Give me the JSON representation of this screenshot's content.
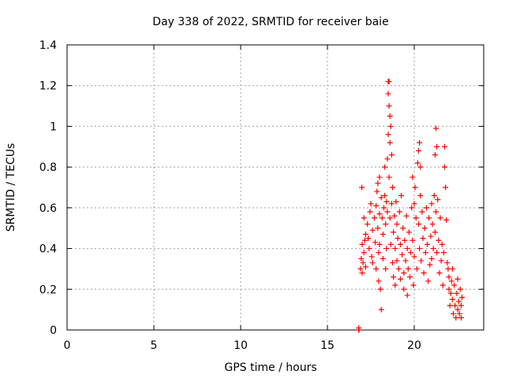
{
  "chart_data": {
    "type": "scatter",
    "title": "Day 338 of 2022, SRMTID for receiver baie",
    "xlabel": "GPS time / hours",
    "ylabel": "SRMTID / TECUs",
    "xlim": [
      0,
      24
    ],
    "ylim": [
      0,
      1.4
    ],
    "xticks": [
      0,
      5,
      10,
      15,
      20
    ],
    "xtick_labels": [
      "0",
      "5",
      "10",
      "15",
      "20"
    ],
    "yticks": [
      0,
      0.2,
      0.4,
      0.6,
      0.8,
      1.0,
      1.2,
      1.4
    ],
    "ytick_labels": [
      "0",
      "0.2",
      "0.4",
      "0.6",
      "0.8",
      "1",
      "1.2",
      "1.4"
    ],
    "grid": true,
    "marker": "plus",
    "color": "#ff0000",
    "series": [
      {
        "name": "SRMTID",
        "points": [
          [
            16.8,
            0.0
          ],
          [
            16.8,
            0.01
          ],
          [
            16.82,
            0.0
          ],
          [
            16.9,
            0.3
          ],
          [
            16.95,
            0.35
          ],
          [
            17.0,
            0.42
          ],
          [
            17.0,
            0.28
          ],
          [
            17.05,
            0.33
          ],
          [
            17.1,
            0.38
          ],
          [
            17.15,
            0.44
          ],
          [
            17.2,
            0.31
          ],
          [
            16.98,
            0.7
          ],
          [
            17.1,
            0.55
          ],
          [
            17.2,
            0.47
          ],
          [
            17.3,
            0.52
          ],
          [
            17.35,
            0.45
          ],
          [
            17.4,
            0.4
          ],
          [
            17.45,
            0.58
          ],
          [
            17.5,
            0.62
          ],
          [
            17.55,
            0.36
          ],
          [
            17.6,
            0.49
          ],
          [
            17.6,
            0.33
          ],
          [
            17.7,
            0.55
          ],
          [
            17.75,
            0.43
          ],
          [
            17.8,
            0.61
          ],
          [
            17.8,
            0.3
          ],
          [
            17.85,
            0.68
          ],
          [
            17.9,
            0.72
          ],
          [
            17.9,
            0.5
          ],
          [
            17.95,
            0.38
          ],
          [
            17.95,
            0.24
          ],
          [
            18.0,
            0.75
          ],
          [
            18.0,
            0.57
          ],
          [
            18.0,
            0.42
          ],
          [
            18.05,
            0.2
          ],
          [
            18.1,
            0.65
          ],
          [
            18.1,
            0.1
          ],
          [
            18.15,
            0.55
          ],
          [
            18.2,
            0.47
          ],
          [
            18.2,
            0.35
          ],
          [
            18.25,
            0.6
          ],
          [
            18.3,
            0.8
          ],
          [
            18.3,
            0.66
          ],
          [
            18.35,
            0.52
          ],
          [
            18.35,
            0.3
          ],
          [
            18.4,
            0.63
          ],
          [
            18.4,
            0.4
          ],
          [
            18.45,
            0.84
          ],
          [
            18.45,
            0.58
          ],
          [
            18.5,
            1.22
          ],
          [
            18.5,
            1.16
          ],
          [
            18.5,
            0.96
          ],
          [
            18.55,
            1.22
          ],
          [
            18.55,
            1.1
          ],
          [
            18.55,
            0.75
          ],
          [
            18.6,
            1.05
          ],
          [
            18.6,
            0.92
          ],
          [
            18.6,
            0.55
          ],
          [
            18.65,
            1.0
          ],
          [
            18.65,
            0.42
          ],
          [
            18.7,
            0.86
          ],
          [
            18.7,
            0.62
          ],
          [
            18.75,
            0.7
          ],
          [
            18.75,
            0.33
          ],
          [
            18.8,
            0.48
          ],
          [
            18.8,
            0.26
          ],
          [
            18.85,
            0.56
          ],
          [
            18.9,
            0.4
          ],
          [
            18.9,
            0.22
          ],
          [
            18.95,
            0.63
          ],
          [
            19.0,
            0.52
          ],
          [
            19.0,
            0.34
          ],
          [
            19.05,
            0.45
          ],
          [
            19.1,
            0.3
          ],
          [
            19.15,
            0.58
          ],
          [
            19.2,
            0.42
          ],
          [
            19.2,
            0.25
          ],
          [
            19.25,
            0.66
          ],
          [
            19.3,
            0.37
          ],
          [
            19.35,
            0.5
          ],
          [
            19.4,
            0.28
          ],
          [
            19.4,
            0.2
          ],
          [
            19.45,
            0.44
          ],
          [
            19.5,
            0.34
          ],
          [
            19.55,
            0.56
          ],
          [
            19.6,
            0.17
          ],
          [
            19.6,
            0.4
          ],
          [
            19.65,
            0.3
          ],
          [
            19.7,
            0.48
          ],
          [
            19.75,
            0.26
          ],
          [
            19.8,
            0.38
          ],
          [
            19.85,
            0.6
          ],
          [
            19.9,
            0.75
          ],
          [
            19.9,
            0.44
          ],
          [
            19.95,
            0.22
          ],
          [
            20.0,
            0.62
          ],
          [
            20.0,
            0.36
          ],
          [
            20.05,
            0.7
          ],
          [
            20.1,
            0.55
          ],
          [
            20.15,
            0.3
          ],
          [
            20.2,
            0.82
          ],
          [
            20.25,
            0.88
          ],
          [
            20.25,
            0.52
          ],
          [
            20.3,
            0.92
          ],
          [
            20.3,
            0.4
          ],
          [
            20.35,
            0.8
          ],
          [
            20.35,
            0.66
          ],
          [
            20.4,
            0.34
          ],
          [
            20.45,
            0.58
          ],
          [
            20.5,
            0.45
          ],
          [
            20.55,
            0.28
          ],
          [
            20.6,
            0.5
          ],
          [
            20.65,
            0.38
          ],
          [
            20.7,
            0.6
          ],
          [
            20.75,
            0.42
          ],
          [
            20.8,
            0.24
          ],
          [
            20.85,
            0.55
          ],
          [
            20.9,
            0.32
          ],
          [
            20.95,
            0.46
          ],
          [
            21.0,
            0.62
          ],
          [
            21.0,
            0.35
          ],
          [
            21.05,
            0.52
          ],
          [
            21.1,
            0.4
          ],
          [
            21.15,
            0.66
          ],
          [
            21.2,
            0.86
          ],
          [
            21.2,
            0.48
          ],
          [
            21.25,
            0.99
          ],
          [
            21.25,
            0.58
          ],
          [
            21.3,
            0.9
          ],
          [
            21.3,
            0.38
          ],
          [
            21.35,
            0.64
          ],
          [
            21.4,
            0.44
          ],
          [
            21.45,
            0.28
          ],
          [
            21.5,
            0.55
          ],
          [
            21.55,
            0.34
          ],
          [
            21.6,
            0.42
          ],
          [
            21.65,
            0.22
          ],
          [
            21.7,
            0.38
          ],
          [
            21.75,
            0.9
          ],
          [
            21.75,
            0.8
          ],
          [
            21.8,
            0.7
          ],
          [
            21.85,
            0.54
          ],
          [
            21.9,
            0.33
          ],
          [
            21.95,
            0.3
          ],
          [
            22.0,
            0.2
          ],
          [
            22.0,
            0.26
          ],
          [
            22.05,
            0.12
          ],
          [
            22.1,
            0.18
          ],
          [
            22.15,
            0.24
          ],
          [
            22.2,
            0.3
          ],
          [
            22.2,
            0.15
          ],
          [
            22.25,
            0.08
          ],
          [
            22.3,
            0.22
          ],
          [
            22.35,
            0.12
          ],
          [
            22.4,
            0.06
          ],
          [
            22.45,
            0.18
          ],
          [
            22.5,
            0.25
          ],
          [
            22.5,
            0.1
          ],
          [
            22.55,
            0.14
          ],
          [
            22.6,
            0.08
          ],
          [
            22.65,
            0.2
          ],
          [
            22.7,
            0.12
          ],
          [
            22.7,
            0.06
          ],
          [
            22.75,
            0.16
          ]
        ]
      }
    ]
  }
}
